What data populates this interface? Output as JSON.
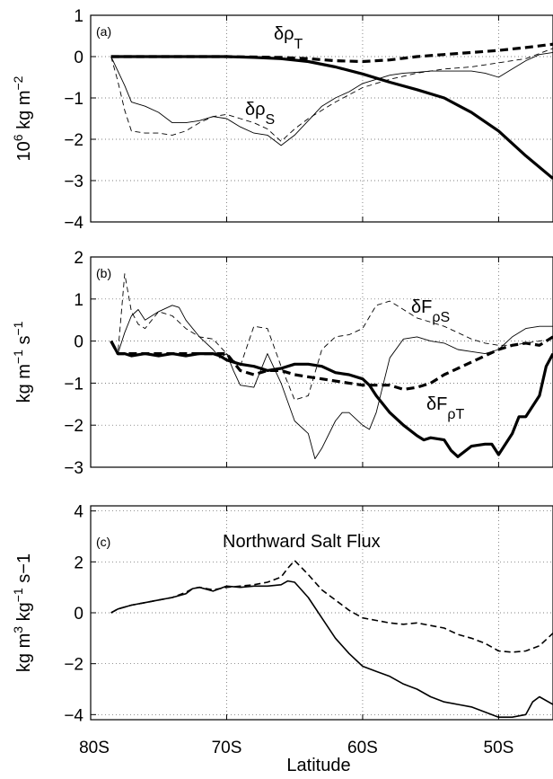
{
  "xaxis": {
    "label": "Latitude",
    "ticks": [
      "80S",
      "70S",
      "60S",
      "50S"
    ]
  },
  "panels": [
    {
      "label": "(a)",
      "ylabel_main": "10",
      "ylabel_sup": "6",
      "ylabel_unit": " kg m",
      "ylabel_unit_sup": "−2",
      "yticks": [
        "1",
        "0",
        "−1",
        "−2",
        "−3",
        "−4"
      ],
      "annotations": {
        "rhoT": {
          "main": "δρ",
          "sub": "T"
        },
        "rhoS": {
          "main": "δρ",
          "sub": "S"
        }
      }
    },
    {
      "label": "(b)",
      "ylabel_main": "kg m",
      "ylabel_sup": "−1",
      "ylabel_unit": " s",
      "ylabel_unit_sup": "−1",
      "yticks": [
        "2",
        "1",
        "0",
        "−1",
        "−2",
        "−3"
      ],
      "annotations": {
        "FrhoS": {
          "main": "δF",
          "sub": "ρS"
        },
        "FrhoT": {
          "main": "δF",
          "sub": "ρT"
        }
      }
    },
    {
      "label": "(c)",
      "title": "Northward Salt Flux",
      "ylabel_a": "kg m",
      "ylabel_a_sup": "3",
      "ylabel_b": " kg",
      "ylabel_b_sup": "−1",
      "ylabel_c": " s−1",
      "yticks": [
        "4",
        "2",
        "0",
        "−2",
        "−4"
      ]
    }
  ],
  "chart_data": [
    {
      "type": "line",
      "panel": "(a)",
      "xlim": [
        -80,
        -46
      ],
      "ylim": [
        -4,
        1
      ],
      "grid": true,
      "series": [
        {
          "name": "δρT",
          "style": "thick-solid",
          "x": [
            -78.5,
            -76,
            -74,
            -72,
            -70,
            -68,
            -66,
            -64,
            -62,
            -60,
            -58,
            -56,
            -54,
            -52,
            -50,
            -48,
            -46
          ],
          "y": [
            0,
            0,
            0,
            0,
            0,
            -0.02,
            -0.05,
            -0.12,
            -0.25,
            -0.42,
            -0.62,
            -0.8,
            -1.0,
            -1.35,
            -1.8,
            -2.4,
            -2.95
          ]
        },
        {
          "name": "",
          "style": "thick-dashed",
          "x": [
            -78.5,
            -74,
            -70,
            -66,
            -64,
            -62,
            -60,
            -58,
            -56,
            -54,
            -52,
            -50,
            -48,
            -46
          ],
          "y": [
            0,
            0,
            0,
            -0.02,
            -0.05,
            -0.1,
            -0.12,
            -0.08,
            0,
            0.05,
            0.1,
            0.15,
            0.22,
            0.3
          ]
        },
        {
          "name": "δρS",
          "style": "thin-solid",
          "x": [
            -78.5,
            -77.5,
            -77,
            -76,
            -75,
            -74,
            -73,
            -72,
            -71,
            -70,
            -69,
            -68,
            -67,
            -66,
            -65,
            -64,
            -63,
            -62,
            -61,
            -60,
            -59,
            -58,
            -57,
            -56,
            -55,
            -54,
            -53,
            -52,
            -51,
            -50,
            -49,
            -48,
            -47,
            -46
          ],
          "y": [
            0,
            -0.7,
            -1.1,
            -1.2,
            -1.35,
            -1.6,
            -1.6,
            -1.55,
            -1.45,
            -1.5,
            -1.7,
            -1.85,
            -1.9,
            -2.15,
            -1.9,
            -1.55,
            -1.2,
            -1.0,
            -0.85,
            -0.65,
            -0.55,
            -0.45,
            -0.4,
            -0.38,
            -0.35,
            -0.35,
            -0.35,
            -0.35,
            -0.4,
            -0.5,
            -0.3,
            -0.1,
            0.05,
            0.1
          ]
        },
        {
          "name": "",
          "style": "thin-dashed",
          "x": [
            -78.5,
            -78,
            -77.5,
            -77,
            -76,
            -75,
            -74,
            -73,
            -72,
            -71,
            -70,
            -69,
            -68,
            -67,
            -66,
            -65,
            -64,
            -62,
            -60,
            -58,
            -56,
            -54,
            -52,
            -50,
            -48,
            -46
          ],
          "y": [
            0,
            -0.6,
            -1.3,
            -1.8,
            -1.85,
            -1.85,
            -1.9,
            -1.8,
            -1.6,
            -1.45,
            -1.4,
            -1.5,
            -1.6,
            -1.75,
            -2.05,
            -1.75,
            -1.5,
            -1.1,
            -0.75,
            -0.55,
            -0.4,
            -0.3,
            -0.25,
            -0.15,
            -0.05,
            0.2
          ]
        }
      ]
    },
    {
      "type": "line",
      "panel": "(b)",
      "xlim": [
        -80,
        -46
      ],
      "ylim": [
        -3,
        2
      ],
      "grid": true,
      "series": [
        {
          "name": "δFρT",
          "style": "thick-solid",
          "x": [
            -78.5,
            -78,
            -77.5,
            -77,
            -76,
            -75,
            -74,
            -73,
            -72,
            -71,
            -70.5,
            -70,
            -69,
            -68,
            -67,
            -66,
            -65,
            -64,
            -63,
            -62,
            -61,
            -60,
            -59.5,
            -59,
            -58,
            -57,
            -56,
            -55.5,
            -55,
            -54,
            -53.5,
            -53,
            -52,
            -51,
            -50.5,
            -50,
            -49,
            -48.5,
            -48,
            -47,
            -46.5,
            -46
          ],
          "y": [
            0,
            -0.3,
            -0.3,
            -0.35,
            -0.3,
            -0.35,
            -0.3,
            -0.35,
            -0.3,
            -0.3,
            -0.35,
            -0.45,
            -0.55,
            -0.6,
            -0.7,
            -0.65,
            -0.55,
            -0.55,
            -0.6,
            -0.75,
            -0.8,
            -0.9,
            -1.05,
            -1.3,
            -1.7,
            -2.0,
            -2.25,
            -2.35,
            -2.3,
            -2.35,
            -2.6,
            -2.75,
            -2.5,
            -2.45,
            -2.45,
            -2.7,
            -2.2,
            -1.8,
            -1.8,
            -1.3,
            -0.6,
            -0.3
          ]
        },
        {
          "name": "",
          "style": "thick-dashed",
          "x": [
            -78.5,
            -78,
            -77,
            -76,
            -75,
            -74,
            -73,
            -72,
            -71,
            -70,
            -69,
            -68,
            -67,
            -66,
            -65,
            -64,
            -63,
            -62,
            -61,
            -60,
            -59,
            -58,
            -57,
            -56,
            -55,
            -54,
            -53,
            -52,
            -51,
            -50,
            -49,
            -48,
            -47,
            -46
          ],
          "y": [
            0,
            -0.3,
            -0.3,
            -0.3,
            -0.3,
            -0.3,
            -0.3,
            -0.3,
            -0.3,
            -0.3,
            -0.7,
            -0.8,
            -0.7,
            -0.7,
            -0.8,
            -0.85,
            -0.9,
            -0.95,
            -1.0,
            -1.05,
            -1.05,
            -1.05,
            -1.15,
            -1.1,
            -1.0,
            -0.8,
            -0.65,
            -0.5,
            -0.35,
            -0.2,
            -0.1,
            -0.05,
            -0.1,
            0.1
          ]
        },
        {
          "name": "",
          "style": "thin-solid",
          "x": [
            -78.5,
            -78,
            -77.5,
            -77,
            -76.5,
            -76,
            -75,
            -74,
            -73.5,
            -73,
            -72,
            -71,
            -70.5,
            -70,
            -69.5,
            -69,
            -68,
            -67,
            -66,
            -65,
            -64,
            -63.5,
            -63,
            -62,
            -61.5,
            -61,
            -60,
            -59.5,
            -59,
            -58,
            -57,
            -56,
            -55,
            -54,
            -53,
            -52,
            -51,
            -50,
            -49,
            -48,
            -47,
            -46
          ],
          "y": [
            0,
            -0.3,
            0.2,
            0.6,
            0.75,
            0.5,
            0.7,
            0.85,
            0.8,
            0.5,
            0.1,
            -0.2,
            -0.4,
            -0.3,
            -0.7,
            -1.05,
            -1.1,
            -0.3,
            -1.0,
            -1.9,
            -2.2,
            -2.8,
            -2.55,
            -1.9,
            -1.7,
            -1.7,
            -2.0,
            -2.1,
            -1.7,
            -0.4,
            0.05,
            0.1,
            0,
            -0.05,
            -0.2,
            -0.25,
            -0.3,
            -0.2,
            0.1,
            0.3,
            0.35,
            0.35
          ]
        },
        {
          "name": "δFρS",
          "style": "thin-dashed",
          "x": [
            -78.5,
            -78,
            -77.5,
            -77,
            -76.5,
            -76,
            -75,
            -74,
            -73,
            -72,
            -71,
            -70,
            -69,
            -68,
            -67,
            -66,
            -65,
            -64,
            -63,
            -62,
            -61,
            -60,
            -59,
            -58,
            -57,
            -56,
            -55,
            -54,
            -53,
            -52,
            -51,
            -50,
            -49,
            -48,
            -47,
            -46
          ],
          "y": [
            0,
            -0.3,
            1.6,
            0.7,
            0.4,
            0.3,
            0.7,
            0.6,
            0.3,
            0.1,
            0.05,
            -0.3,
            -0.6,
            0.35,
            0.3,
            -0.6,
            -1.4,
            -1.3,
            -0.2,
            0.1,
            0.15,
            0.3,
            0.85,
            0.95,
            0.75,
            0.55,
            0.45,
            0.35,
            0.2,
            0.05,
            -0.05,
            -0.1,
            -0.1,
            -0.05,
            0,
            0.05
          ]
        }
      ]
    },
    {
      "type": "line",
      "panel": "(c)",
      "xlim": [
        -80,
        -46
      ],
      "ylim": [
        -4.2,
        4.2
      ],
      "grid": true,
      "series": [
        {
          "name": "",
          "style": "solid",
          "x": [
            -78.5,
            -78,
            -77,
            -76,
            -75,
            -74,
            -73,
            -72.5,
            -72,
            -71,
            -70.5,
            -70,
            -69,
            -68,
            -67,
            -66,
            -65.5,
            -65,
            -64,
            -63,
            -62,
            -61,
            -60,
            -59,
            -58,
            -57,
            -56,
            -55,
            -54,
            -53,
            -52,
            -51,
            -50,
            -49,
            -48,
            -47.5,
            -47,
            -46
          ],
          "y": [
            0,
            0.15,
            0.3,
            0.4,
            0.5,
            0.6,
            0.75,
            0.95,
            1.0,
            0.85,
            0.95,
            1.05,
            1.0,
            1.05,
            1.05,
            1.1,
            1.25,
            1.2,
            0.6,
            -0.2,
            -1.0,
            -1.6,
            -2.1,
            -2.3,
            -2.5,
            -2.8,
            -3.0,
            -3.3,
            -3.5,
            -3.6,
            -3.7,
            -3.9,
            -4.1,
            -4.1,
            -4.0,
            -3.5,
            -3.3,
            -3.6
          ]
        },
        {
          "name": "",
          "style": "dashed",
          "x": [
            -78.5,
            -78,
            -77,
            -76,
            -75,
            -74,
            -73,
            -72.5,
            -72,
            -71,
            -70,
            -69,
            -68,
            -67,
            -66,
            -65.5,
            -65,
            -64,
            -63,
            -62,
            -61,
            -60,
            -59,
            -58,
            -57,
            -56,
            -55,
            -54,
            -53,
            -52,
            -51,
            -50,
            -49,
            -48,
            -47,
            -46
          ],
          "y": [
            0,
            0.15,
            0.3,
            0.4,
            0.5,
            0.6,
            0.8,
            0.95,
            1.0,
            0.9,
            1.0,
            1.05,
            1.1,
            1.2,
            1.4,
            1.75,
            2.05,
            1.5,
            0.9,
            0.5,
            0.1,
            -0.2,
            -0.3,
            -0.4,
            -0.45,
            -0.4,
            -0.5,
            -0.6,
            -0.85,
            -1.0,
            -1.2,
            -1.5,
            -1.55,
            -1.5,
            -1.3,
            -0.8
          ]
        }
      ]
    }
  ]
}
